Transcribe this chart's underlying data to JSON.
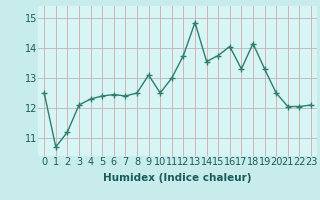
{
  "x": [
    0,
    1,
    2,
    3,
    4,
    5,
    6,
    7,
    8,
    9,
    10,
    11,
    12,
    13,
    14,
    15,
    16,
    17,
    18,
    19,
    20,
    21,
    22,
    23
  ],
  "y": [
    12.5,
    10.7,
    11.2,
    12.1,
    12.3,
    12.4,
    12.45,
    12.4,
    12.5,
    13.1,
    12.5,
    13.0,
    13.75,
    14.85,
    13.55,
    13.75,
    14.05,
    13.3,
    14.15,
    13.3,
    12.5,
    12.05,
    12.05,
    12.1
  ],
  "line_color": "#2e7d6e",
  "marker": "+",
  "marker_size": 5,
  "line_width": 1.0,
  "bg_color": "#c8ecec",
  "plot_bg_color": "#d8f5f5",
  "vgrid_color": "#d4a8a8",
  "hgrid_color": "#b8b8b8",
  "xlabel": "Humidex (Indice chaleur)",
  "xlabel_fontsize": 7.5,
  "xlabel_fontweight": "bold",
  "xtick_labels": [
    "0",
    "1",
    "2",
    "3",
    "4",
    "5",
    "6",
    "7",
    "8",
    "9",
    "10",
    "11",
    "12",
    "13",
    "14",
    "15",
    "16",
    "17",
    "18",
    "19",
    "20",
    "21",
    "22",
    "23"
  ],
  "ytick_labels": [
    "11",
    "12",
    "13",
    "14",
    "15"
  ],
  "yticks": [
    11,
    12,
    13,
    14,
    15
  ],
  "ylim": [
    10.4,
    15.4
  ],
  "xlim": [
    -0.5,
    23.5
  ],
  "tick_fontsize": 7,
  "label_color": "#1a5c5c"
}
